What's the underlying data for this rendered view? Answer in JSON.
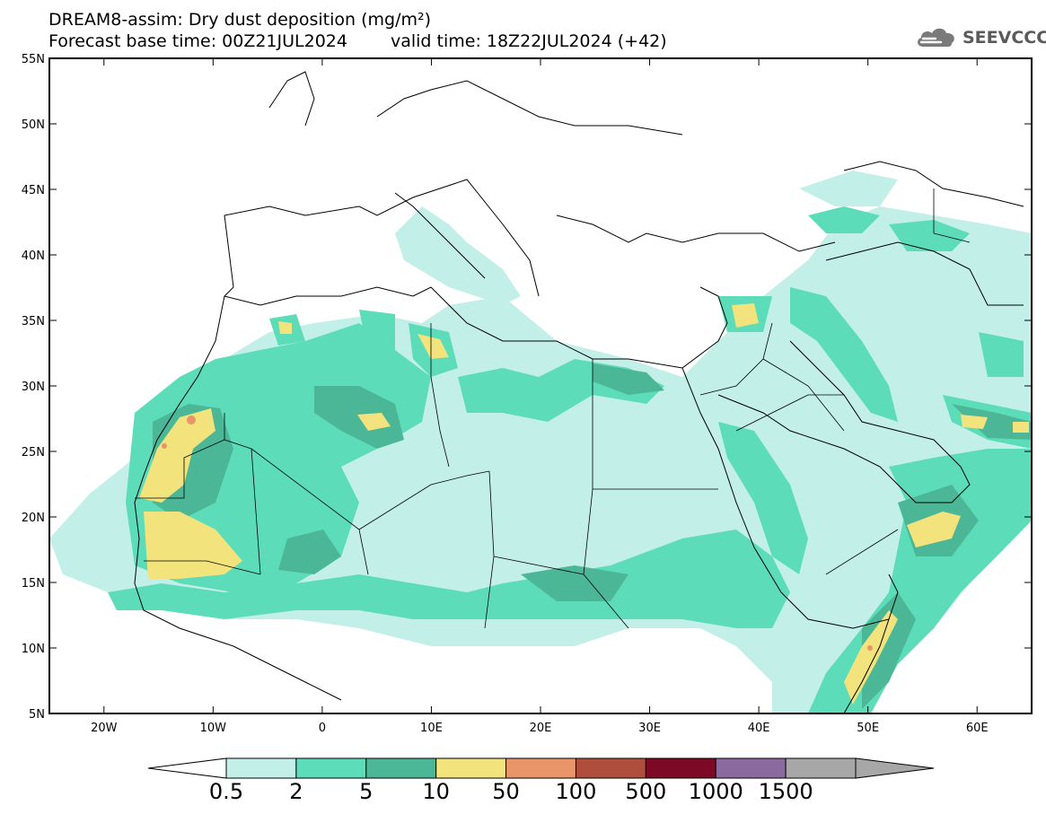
{
  "title": {
    "line1": "DREAM8-assim: Dry dust deposition (mg/m²)",
    "base_time": "Forecast base time: 00Z21JUL2024",
    "valid_time": "valid time: 18Z22JUL2024 (+42)"
  },
  "logo": {
    "text": "SEEVCCC",
    "icon": "cloud-icon"
  },
  "axes": {
    "lat_labels": [
      "55N",
      "50N",
      "45N",
      "40N",
      "35N",
      "30N",
      "25N",
      "20N",
      "15N",
      "10N",
      "5N"
    ],
    "lat_values": [
      55,
      50,
      45,
      40,
      35,
      30,
      25,
      20,
      15,
      10,
      5
    ],
    "lon_labels": [
      "20W",
      "10W",
      "0",
      "10E",
      "20E",
      "30E",
      "40E",
      "50E",
      "60E"
    ],
    "lon_values": [
      -20,
      -10,
      0,
      10,
      20,
      30,
      40,
      50,
      60
    ],
    "lon_range": [
      -25,
      65
    ],
    "lat_range": [
      5,
      55
    ]
  },
  "colorbar": {
    "labels": [
      "0.5",
      "2",
      "5",
      "10",
      "50",
      "100",
      "500",
      "1000",
      "1500"
    ],
    "colors": [
      "#c3efe9",
      "#5ddcb9",
      "#4bb796",
      "#f3e37c",
      "#e99569",
      "#b04e3e",
      "#7c0a26",
      "#8b6aa0",
      "#a7a7a7"
    ],
    "under_color": "#ffffff",
    "over_color": "#a7a7a7"
  },
  "map_colors": {
    "border": "#000000",
    "level1": "#c3efe9",
    "level2": "#5ddcb9",
    "level3": "#4bb796",
    "level4": "#f3e37c",
    "level5": "#e99569"
  }
}
